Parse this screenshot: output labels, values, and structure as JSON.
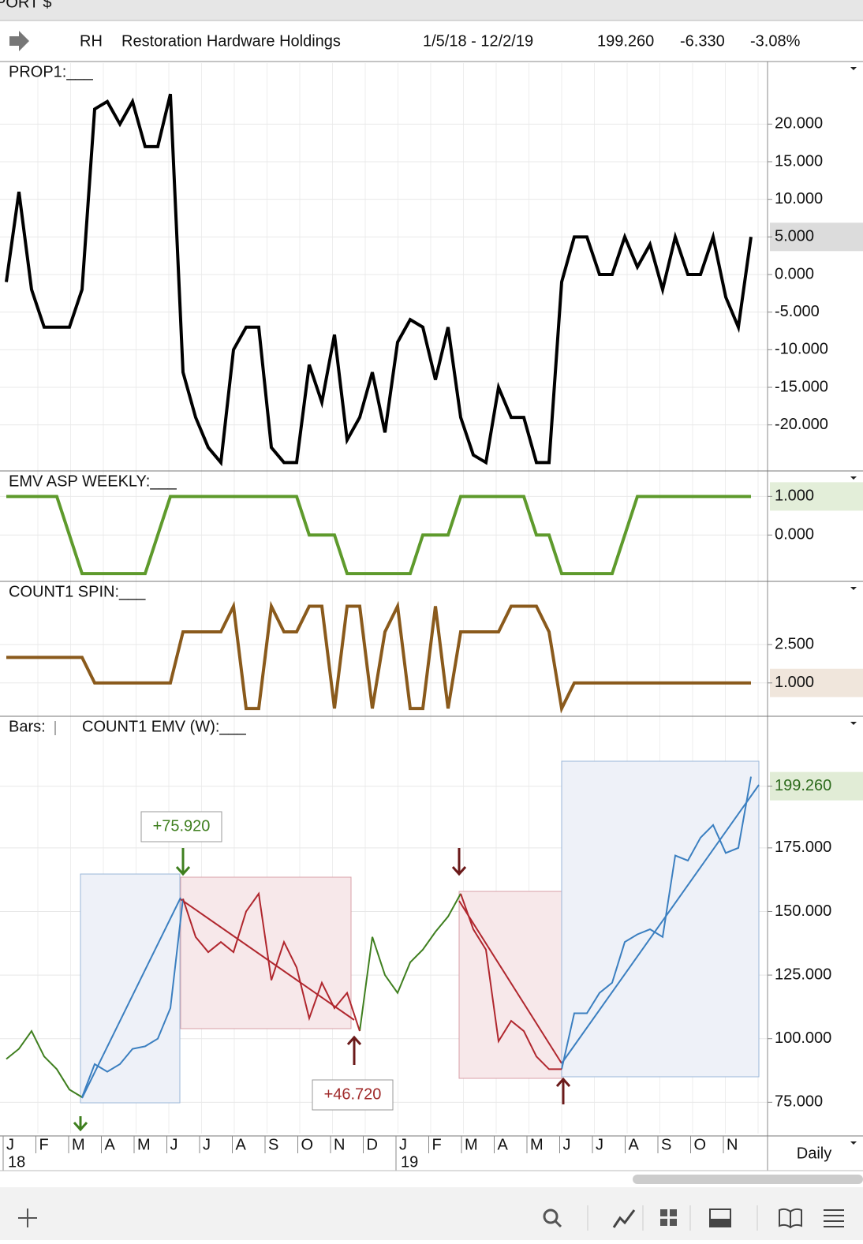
{
  "header": {
    "portfolio": "PORT $",
    "symbol": "RH",
    "company": "Restoration Hardware Holdings",
    "range": "1/5/18 - 12/2/19",
    "price": "199.260",
    "change": "-6.330",
    "change_pct": "-3.08%"
  },
  "chart_data": [
    {
      "type": "line",
      "title": "PROP1:___",
      "ylim": [
        -25.7,
        27.9
      ],
      "yticks": [
        {
          "value": 20,
          "label": "20.000"
        },
        {
          "value": 15,
          "label": "15.000"
        },
        {
          "value": 10,
          "label": "10.000"
        },
        {
          "value": 5,
          "label": "5.000"
        },
        {
          "value": 0,
          "label": "0.000"
        },
        {
          "value": -5,
          "label": "-5.000"
        },
        {
          "value": -10,
          "label": "-10.000"
        },
        {
          "value": -15,
          "label": "-15.000"
        },
        {
          "value": -20,
          "label": "-20.000"
        }
      ],
      "highlight_tick": 3,
      "highlight_color": "#dcdcdc",
      "series": [
        {
          "color": "#000000",
          "values": [
            -1,
            11,
            -2,
            -7,
            -7,
            -7,
            -2,
            22,
            23,
            20,
            23,
            17,
            17,
            24,
            -13,
            -19,
            -23,
            -25,
            -10,
            -7,
            -7,
            -23,
            -25,
            -25,
            -12,
            -17,
            -8,
            -22,
            -19,
            -13,
            -21,
            -9,
            -6,
            -7,
            -14,
            -7,
            -19,
            -24,
            -25,
            -15,
            -19,
            -19,
            -25,
            -25,
            -1,
            5,
            5,
            0,
            0,
            5,
            1,
            4,
            -2,
            5,
            0,
            0,
            5,
            -3,
            -7,
            5
          ]
        }
      ]
    },
    {
      "type": "line",
      "title": "EMV ASP WEEKLY:___",
      "ylim": [
        -1.12,
        1.58
      ],
      "yticks": [
        {
          "value": 1,
          "label": "1.000"
        },
        {
          "value": 0,
          "label": "0.000"
        }
      ],
      "highlight_tick": 0,
      "highlight_color": "#e3eed9",
      "series": [
        {
          "color": "#5e9a2c",
          "values": [
            1,
            1,
            1,
            1,
            1,
            0,
            -1,
            -1,
            -1,
            -1,
            -1,
            -1,
            0,
            1,
            1,
            1,
            1,
            1,
            1,
            1,
            1,
            1,
            1,
            1,
            0,
            0,
            0,
            -1,
            -1,
            -1,
            -1,
            -1,
            -1,
            0,
            0,
            0,
            1,
            1,
            1,
            1,
            1,
            1,
            0,
            0,
            -1,
            -1,
            -1,
            -1,
            -1,
            0,
            1,
            1,
            1,
            1,
            1,
            1,
            1,
            1,
            1,
            1
          ]
        }
      ]
    },
    {
      "type": "line",
      "title": "COUNT1 SPIN:___",
      "ylim": [
        -0.18,
        4.85
      ],
      "yticks": [
        {
          "value": 2.5,
          "label": "2.500"
        },
        {
          "value": 1,
          "label": "1.000"
        }
      ],
      "highlight_tick": 1,
      "highlight_color": "#f0e6dc",
      "series": [
        {
          "color": "#8a5a1c",
          "values": [
            2,
            2,
            2,
            2,
            2,
            2,
            2,
            1,
            1,
            1,
            1,
            1,
            1,
            1,
            3,
            3,
            3,
            3,
            4,
            0,
            0,
            4,
            3,
            3,
            4,
            4,
            0,
            4,
            4,
            0,
            3,
            4,
            0,
            0,
            4,
            0,
            3,
            3,
            3,
            3,
            4,
            4,
            4,
            3,
            0,
            1,
            1,
            1,
            1,
            1,
            1,
            1,
            1,
            1,
            1,
            1,
            1,
            1,
            1,
            1
          ]
        }
      ]
    },
    {
      "type": "line",
      "title": "Bars:",
      "subtitle": "COUNT1 EMV (W):___",
      "ylim": [
        62.7,
        225.5
      ],
      "yticks": [
        {
          "value": 75,
          "label": "75.000"
        },
        {
          "value": 100,
          "label": "100.000"
        },
        {
          "value": 125,
          "label": "125.000"
        },
        {
          "value": 150,
          "label": "150.000"
        },
        {
          "value": 175,
          "label": "175.000"
        },
        {
          "value": 199.26,
          "label": "199.260"
        }
      ],
      "highlight_tick": 5,
      "highlight_color": "#e1ecd6",
      "annotations": [
        "+75.920",
        "+46.720"
      ],
      "series": [
        {
          "color": "#3f7f1f",
          "values": [
            92,
            96,
            103,
            93,
            88,
            80,
            77,
            null,
            null,
            null,
            null,
            null,
            null,
            null,
            null,
            null,
            null,
            null,
            null,
            null,
            null,
            null,
            null,
            null,
            null,
            null,
            null,
            null,
            103,
            140,
            125,
            118,
            130,
            135,
            142,
            148,
            157,
            null,
            null,
            null,
            null,
            null,
            null,
            null,
            null,
            null,
            null,
            null,
            null,
            null,
            null,
            null,
            null,
            null,
            null,
            null,
            null,
            null,
            null,
            null
          ]
        },
        {
          "color": "#3b7fc0",
          "values": [
            null,
            null,
            null,
            null,
            null,
            null,
            77,
            90,
            87,
            90,
            96,
            97,
            100,
            112,
            155,
            null,
            null,
            null,
            null,
            null,
            null,
            null,
            null,
            null,
            null,
            null,
            null,
            null,
            null,
            null,
            null,
            null,
            null,
            null,
            null,
            null,
            null,
            null,
            null,
            null,
            null,
            null,
            null,
            null,
            88,
            110,
            110,
            118,
            122,
            138,
            141,
            143,
            140,
            172,
            170,
            179,
            184,
            173,
            175,
            203
          ]
        },
        {
          "color": "#b0272e",
          "values": [
            null,
            null,
            null,
            null,
            null,
            null,
            null,
            null,
            null,
            null,
            null,
            null,
            null,
            null,
            155,
            140,
            134,
            138,
            134,
            150,
            157,
            123,
            138,
            128,
            108,
            122,
            112,
            118,
            103,
            null,
            null,
            null,
            null,
            null,
            null,
            null,
            157,
            143,
            135,
            99,
            107,
            103,
            93,
            88,
            88,
            null,
            null,
            null,
            null,
            null,
            null,
            null,
            null,
            null,
            null,
            null,
            null,
            null,
            null,
            null
          ]
        }
      ]
    }
  ],
  "x_axis": {
    "months": [
      "J",
      "F",
      "M",
      "A",
      "M",
      "J",
      "J",
      "A",
      "S",
      "O",
      "N",
      "D",
      "J",
      "F",
      "M",
      "A",
      "M",
      "J",
      "J",
      "A",
      "S",
      "O",
      "N"
    ],
    "years": [
      "18",
      "19"
    ],
    "period": "Daily"
  }
}
